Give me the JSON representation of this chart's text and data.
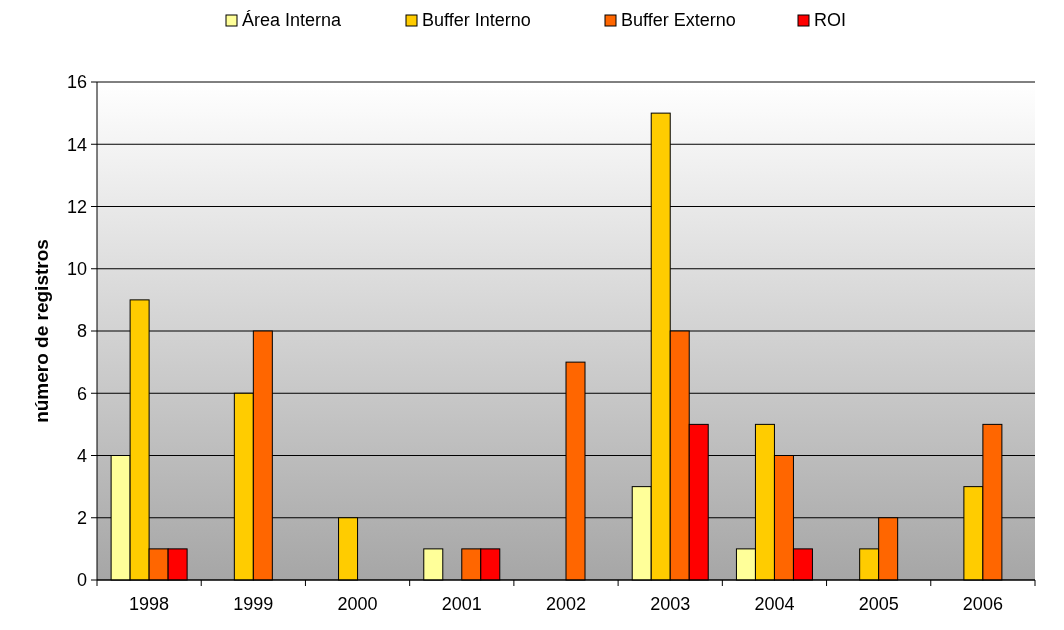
{
  "chart_data": {
    "type": "bar",
    "ylabel": "número de registros",
    "categories": [
      "1998",
      "1999",
      "2000",
      "2001",
      "2002",
      "2003",
      "2004",
      "2005",
      "2006"
    ],
    "series": [
      {
        "name": "Área Interna",
        "color": "#ffff99",
        "values": [
          4,
          0,
          0,
          1,
          0,
          3,
          1,
          0,
          0
        ]
      },
      {
        "name": "Buffer Interno",
        "color": "#ffcc00",
        "values": [
          9,
          6,
          2,
          0,
          0,
          15,
          5,
          1,
          3
        ]
      },
      {
        "name": "Buffer Externo",
        "color": "#ff6600",
        "values": [
          1,
          8,
          0,
          1,
          7,
          8,
          4,
          2,
          5
        ]
      },
      {
        "name": "ROI",
        "color": "#ff0000",
        "values": [
          1,
          0,
          0,
          1,
          0,
          5,
          1,
          0,
          0
        ]
      }
    ],
    "ylim": [
      0,
      16
    ],
    "yticks": [
      0,
      2,
      4,
      6,
      8,
      10,
      12,
      14,
      16
    ],
    "grid": "y",
    "legend": "top"
  }
}
